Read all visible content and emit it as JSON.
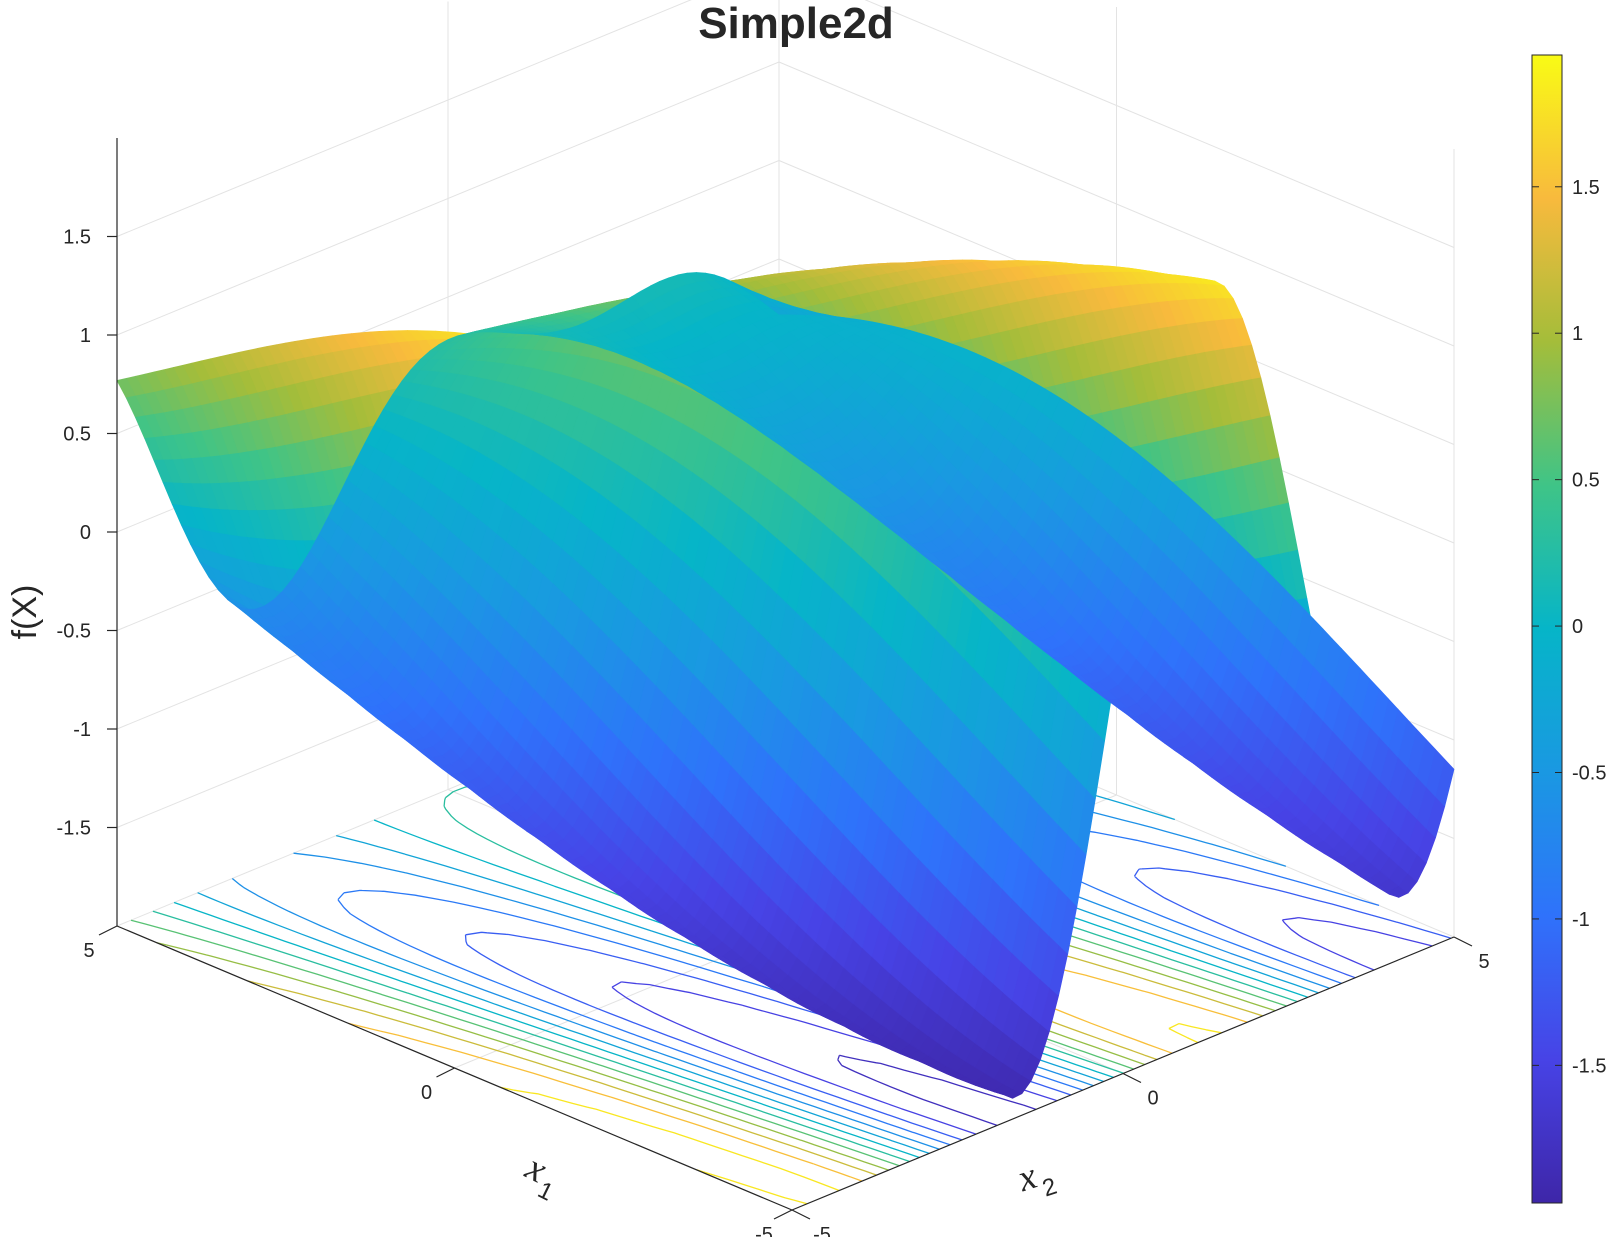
{
  "chart_data": {
    "type": "surface",
    "title": "Simple2d",
    "zlabel": "f(X)",
    "xlabel": {
      "base": "x",
      "sub": "1"
    },
    "ylabel": {
      "base": "x",
      "sub": "2"
    },
    "xlim": [
      -5,
      5
    ],
    "ylim": [
      -5,
      5
    ],
    "zlim": [
      -2,
      2
    ],
    "x_ticks": [
      "-5",
      "0",
      "5"
    ],
    "y_ticks": [
      "-5",
      "0",
      "5"
    ],
    "z_ticks": [
      -1.5,
      -1,
      -0.5,
      0,
      0.5,
      1,
      1.5
    ],
    "z_tick_labels": [
      "-1.5",
      "-1",
      "-0.5",
      "0",
      "0.5",
      "1",
      "1.5"
    ],
    "function": "sin(x2) + 0.9*cos(1.15*x2 + x1/4)",
    "contours_below": true,
    "grid": true,
    "colormap": "parula",
    "colorbar": {
      "location": "right",
      "limits": [
        -1.97,
        1.95
      ],
      "ticks": [
        -1.5,
        -1,
        -0.5,
        0,
        0.5,
        1,
        1.5
      ],
      "tick_labels": [
        "-1.5",
        "-1",
        "-0.5",
        "0",
        "0.5",
        "1",
        "1.5"
      ]
    }
  }
}
